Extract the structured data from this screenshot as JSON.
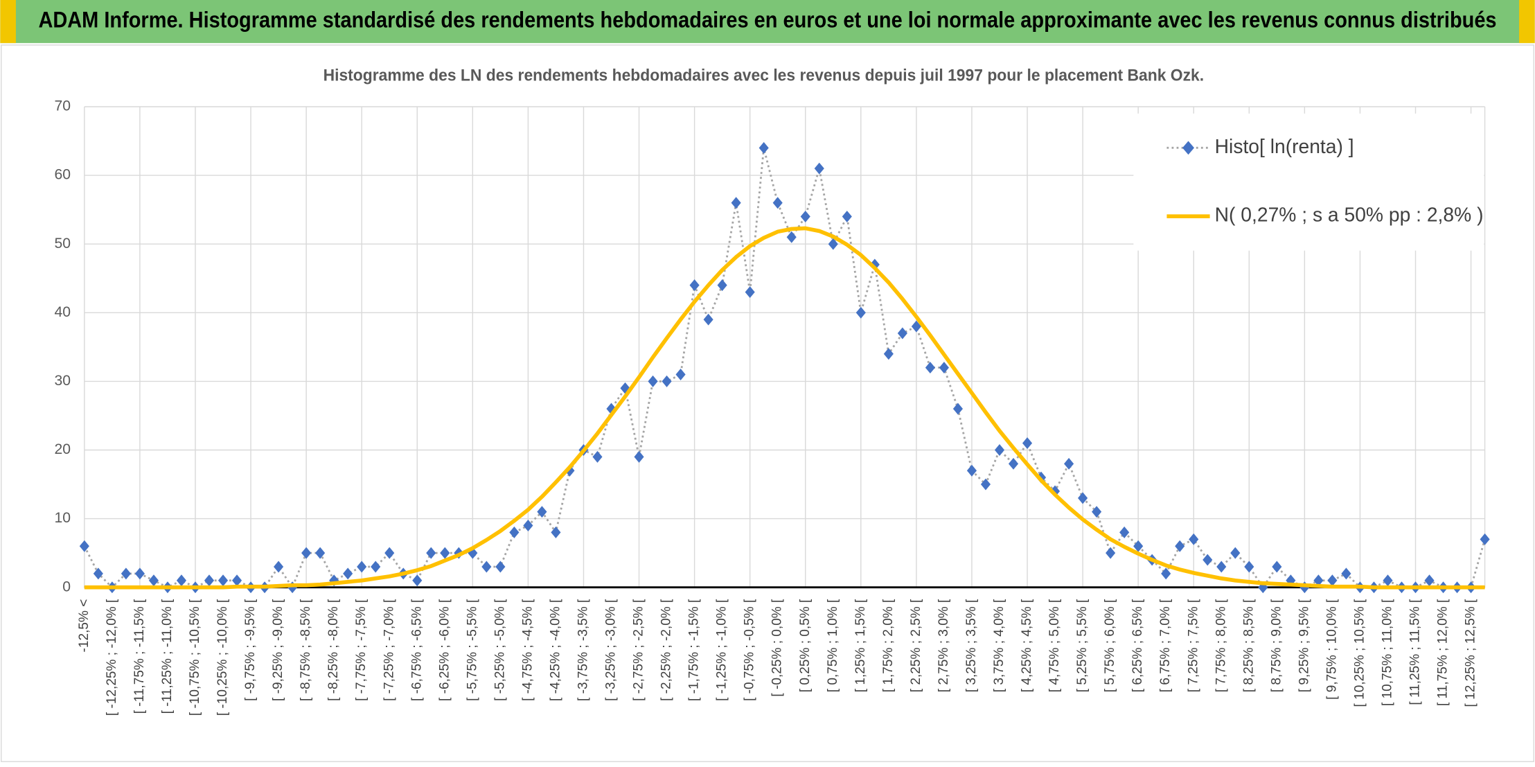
{
  "page_title": "ADAM Informe. Histogramme standardisé des rendements hebdomadaires en euros et une loi normale approximante avec les revenus connus distribués",
  "chart_data": {
    "type": "line",
    "title": "Histogramme des LN des rendements hebdomadaires avec les revenus depuis juil 1997 pour le placement Bank Ozk.",
    "categories": [
      "-12,5% <",
      null,
      "[ -12,25% ; -12,0% [",
      null,
      "[ -11,75% ; -11,5% [",
      null,
      "[ -11,25% ; -11,0% [",
      null,
      "[ -10,75% ; -10,5% [",
      null,
      "[ -10,25% ; -10,0% [",
      null,
      "[ -9,75% ; -9,5% [",
      null,
      "[ -9,25% ; -9,0% [",
      null,
      "[ -8,75% ; -8,5% [",
      null,
      "[ -8,25% ; -8,0% [",
      null,
      "[ -7,75% ; -7,5% [",
      null,
      "[ -7,25% ; -7,0% [",
      null,
      "[ -6,75% ; -6,5% [",
      null,
      "[ -6,25% ; -6,0% [",
      null,
      "[ -5,75% ; -5,5% [",
      null,
      "[ -5,25% ; -5,0% [",
      null,
      "[ -4,75% ; -4,5% [",
      null,
      "[ -4,25% ; -4,0% [",
      null,
      "[ -3,75% ; -3,5% [",
      null,
      "[ -3,25% ; -3,0% [",
      null,
      "[ -2,75% ; -2,5% [",
      null,
      "[ -2,25% ; -2,0% [",
      null,
      "[ -1,75% ; -1,5% [",
      null,
      "[ -1,25% ; -1,0% [",
      null,
      "[ -0,75% ; -0,5% [",
      null,
      "[ -0,25% ; 0,0% [",
      null,
      "[ 0,25% ; 0,5% [",
      null,
      "[ 0,75% ; 1,0% [",
      null,
      "[ 1,25% ; 1,5% [",
      null,
      "[ 1,75% ; 2,0% [",
      null,
      "[ 2,25% ; 2,5% [",
      null,
      "[ 2,75% ; 3,0% [",
      null,
      "[ 3,25% ; 3,5% [",
      null,
      "[ 3,75% ; 4,0% [",
      null,
      "[ 4,25% ; 4,5% [",
      null,
      "[ 4,75% ; 5,0% [",
      null,
      "[ 5,25% ; 5,5% [",
      null,
      "[ 5,75% ; 6,0% [",
      null,
      "[ 6,25% ; 6,5% [",
      null,
      "[ 6,75% ; 7,0% [",
      null,
      "[ 7,25% ; 7,5% [",
      null,
      "[ 7,75% ; 8,0% [",
      null,
      "[ 8,25% ; 8,5% [",
      null,
      "[ 8,75% ; 9,0% [",
      null,
      "[ 9,25% ; 9,5% [",
      null,
      "[ 9,75% ; 10,0% [",
      null,
      "[ 10,25% ; 10,5% [",
      null,
      "[ 10,75% ; 11,0% [",
      null,
      "[ 11,25% ; 11,5% [",
      null,
      "[ 11,75% ; 12,0% [",
      null,
      "[ 12,25% ; 12,5% [",
      null
    ],
    "series": [
      {
        "name": "Histo[ ln(renta) ]",
        "color": "#4472c4",
        "line_color": "#a5a5a5",
        "marker": "diamond",
        "values": [
          6,
          2,
          0,
          2,
          2,
          1,
          0,
          1,
          0,
          1,
          1,
          1,
          0,
          0,
          3,
          0,
          5,
          5,
          1,
          2,
          3,
          3,
          5,
          2,
          1,
          5,
          5,
          5,
          5,
          3,
          3,
          8,
          9,
          11,
          8,
          17,
          20,
          19,
          26,
          29,
          19,
          30,
          30,
          31,
          44,
          39,
          44,
          56,
          43,
          64,
          56,
          51,
          54,
          61,
          50,
          54,
          40,
          47,
          34,
          37,
          38,
          32,
          32,
          26,
          17,
          15,
          20,
          18,
          21,
          16,
          14,
          18,
          13,
          11,
          5,
          8,
          6,
          4,
          2,
          6,
          7,
          4,
          3,
          5,
          3,
          0,
          3,
          1,
          0,
          1,
          1,
          2,
          0,
          0,
          1,
          0,
          0,
          1,
          0,
          0,
          0,
          7
        ]
      },
      {
        "name": "N( 0,27% ; s a 50% pp : 2,8% )",
        "color": "#ffc000",
        "marker": "none",
        "values": [
          0,
          0,
          0,
          0,
          0,
          0,
          0,
          0,
          0,
          0,
          0,
          0.1,
          0.1,
          0.1,
          0.2,
          0.3,
          0.3,
          0.4,
          0.6,
          0.8,
          1.0,
          1.3,
          1.6,
          2.0,
          2.5,
          3.1,
          3.9,
          4.7,
          5.7,
          6.9,
          8.2,
          9.7,
          11.3,
          13.2,
          15.3,
          17.5,
          19.9,
          22.4,
          25.1,
          27.8,
          30.6,
          33.5,
          36.3,
          39.0,
          41.6,
          44.0,
          46.2,
          48.1,
          49.7,
          50.9,
          51.8,
          52.2,
          52.3,
          51.9,
          51.1,
          49.9,
          48.4,
          46.5,
          44.4,
          42.0,
          39.4,
          36.7,
          33.9,
          31.1,
          28.3,
          25.5,
          22.8,
          20.3,
          17.9,
          15.6,
          13.5,
          11.6,
          9.9,
          8.4,
          7.0,
          5.9,
          4.9,
          4.0,
          3.2,
          2.6,
          2.1,
          1.7,
          1.3,
          1.0,
          0.8,
          0.6,
          0.5,
          0.4,
          0.3,
          0.2,
          0.1,
          0.1,
          0.1,
          0,
          0,
          0,
          0,
          0,
          0,
          0,
          0,
          0
        ]
      }
    ],
    "ylim": [
      0,
      70
    ],
    "yticks": [
      0,
      10,
      20,
      30,
      40,
      50,
      60,
      70
    ],
    "grid": true,
    "legend": "upper right"
  }
}
